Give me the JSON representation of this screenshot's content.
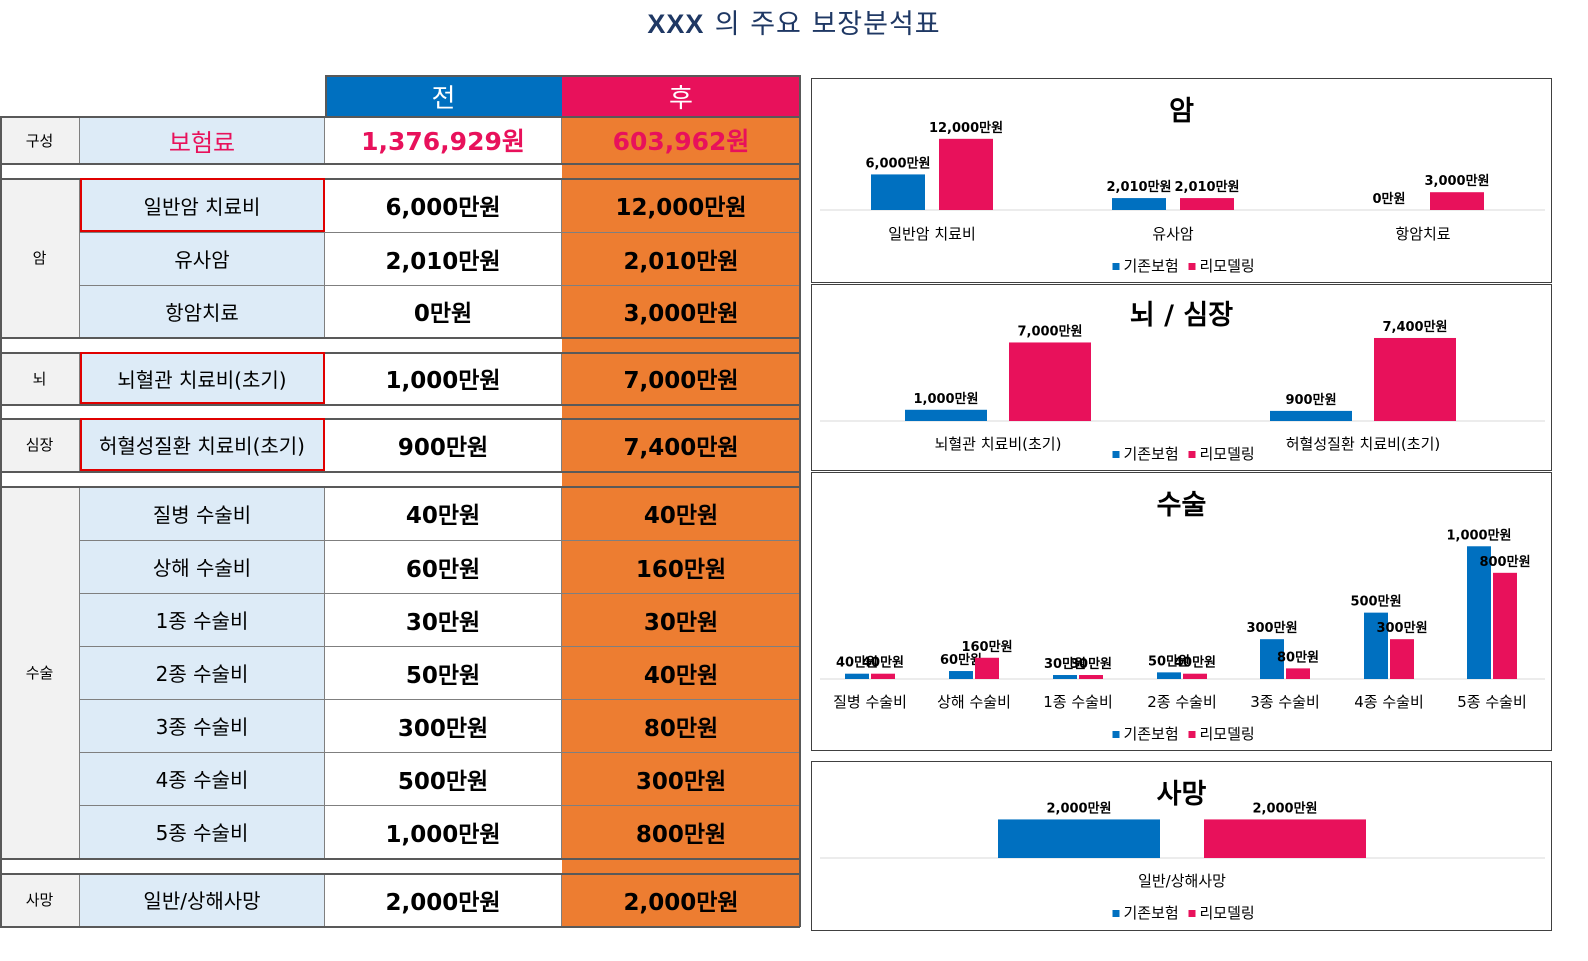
{
  "title": {
    "prefix": "XXX",
    "rest": "의 주요 보장분석표"
  },
  "table": {
    "header_before": "전",
    "header_after": "후",
    "premium": {
      "category": "구성",
      "label": "보험료",
      "before": "1,376,929원",
      "after": "603,962원"
    },
    "rows": [
      {
        "category": "암",
        "label": "일반암 치료비",
        "before": "6,000만원",
        "after": "12,000만원"
      },
      {
        "category": "암",
        "label": "유사암",
        "before": "2,010만원",
        "after": "2,010만원"
      },
      {
        "category": "암",
        "label": "항암치료",
        "before": "0만원",
        "after": "3,000만원"
      },
      {
        "category": "뇌",
        "label": "뇌혈관 치료비(초기)",
        "before": "1,000만원",
        "after": "7,000만원"
      },
      {
        "category": "심장",
        "label": "허혈성질환 치료비(초기)",
        "before": "900만원",
        "after": "7,400만원"
      },
      {
        "category": "수술",
        "label": "질병 수술비",
        "before": "40만원",
        "after": "40만원"
      },
      {
        "category": "수술",
        "label": "상해 수술비",
        "before": "60만원",
        "after": "160만원"
      },
      {
        "category": "수술",
        "label": "1종 수술비",
        "before": "30만원",
        "after": "30만원"
      },
      {
        "category": "수술",
        "label": "2종 수술비",
        "before": "50만원",
        "after": "40만원"
      },
      {
        "category": "수술",
        "label": "3종 수술비",
        "before": "300만원",
        "after": "80만원"
      },
      {
        "category": "수술",
        "label": "4종 수술비",
        "before": "500만원",
        "after": "300만원"
      },
      {
        "category": "수술",
        "label": "5종 수술비",
        "before": "1,000만원",
        "after": "800만원"
      },
      {
        "category": "사망",
        "label": "일반/상해사망",
        "before": "2,000만원",
        "after": "2,000만원"
      }
    ],
    "categories": [
      "암",
      "뇌",
      "심장",
      "수술",
      "사망"
    ]
  },
  "colors": {
    "blue": "#0070c0",
    "pink": "#e8115b",
    "orange": "#ed7d31",
    "light_blue": "#ddebf7",
    "title_blue": "#1f3864",
    "premium_pink": "#e8115b",
    "red_box": "#e00000"
  },
  "chart_data": [
    {
      "type": "bar",
      "title": "암",
      "categories": [
        "일반암 치료비",
        "유사암",
        "항암치료"
      ],
      "series": [
        {
          "name": "기존보험",
          "values": [
            6000,
            2010,
            0
          ],
          "labels": [
            "6,000만원",
            "2,010만원",
            "0만원"
          ]
        },
        {
          "name": "리모델링",
          "values": [
            12000,
            2010,
            3000
          ],
          "labels": [
            "12,000만원",
            "2,010만원",
            "3,000만원"
          ]
        }
      ],
      "ylim": [
        0,
        14500
      ],
      "legend": "bottom"
    },
    {
      "type": "bar",
      "title": "뇌 / 심장",
      "categories": [
        "뇌혈관 치료비(초기)",
        "허혈성질환 치료비(초기)"
      ],
      "series": [
        {
          "name": "기존보험",
          "values": [
            1000,
            900
          ],
          "labels": [
            "1,000만원",
            "900만원"
          ]
        },
        {
          "name": "리모델링",
          "values": [
            7000,
            7400
          ],
          "labels": [
            "7,000만원",
            "7,400만원"
          ]
        }
      ],
      "ylim": [
        0,
        8200
      ],
      "legend": "bottom"
    },
    {
      "type": "bar",
      "title": "수술",
      "categories": [
        "질병 수술비",
        "상해 수술비",
        "1종 수술비",
        "2종 수술비",
        "3종 수술비",
        "4종 수술비",
        "5종 수술비"
      ],
      "series": [
        {
          "name": "기존보험",
          "values": [
            40,
            60,
            30,
            50,
            300,
            500,
            1000
          ],
          "labels": [
            "40만원",
            "60만원",
            "30만원",
            "50만원",
            "300만원",
            "500만원",
            "1,000만원"
          ]
        },
        {
          "name": "리모델링",
          "values": [
            40,
            160,
            30,
            40,
            80,
            300,
            800
          ],
          "labels": [
            "40만원",
            "160만원",
            "30만원",
            "40만원",
            "80만원",
            "300만원",
            "800만원"
          ]
        }
      ],
      "ylim": [
        0,
        1100
      ],
      "legend": "bottom"
    },
    {
      "type": "bar",
      "title": "사망",
      "categories": [
        "일반/상해사망"
      ],
      "series": [
        {
          "name": "기존보험",
          "values": [
            2000
          ],
          "labels": [
            "2,000만원"
          ]
        },
        {
          "name": "리모델링",
          "values": [
            2000
          ],
          "labels": [
            "2,000만원"
          ]
        }
      ],
      "ylim": [
        0,
        2800
      ],
      "legend": "bottom"
    }
  ]
}
